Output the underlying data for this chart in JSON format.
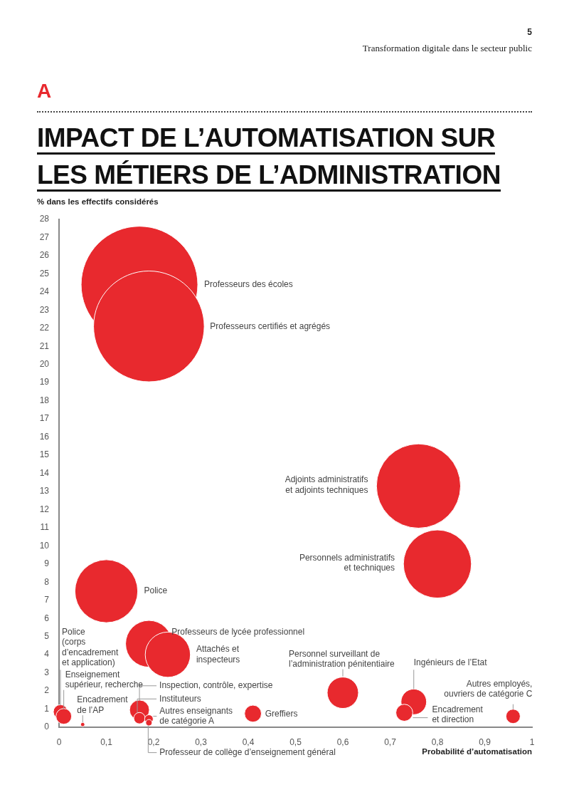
{
  "chart_data": {
    "type": "bubble",
    "title": "IMPACT DE L’AUTOMATISATION SUR LES MÉTIERS DE L’ADMINISTRATION",
    "subtitle": "Transformation digitale dans le secteur public",
    "ylabel": "% dans les effectifs considérés",
    "xlabel": "Probabilité d’automatisation",
    "annotations": [
      "5",
      "A"
    ],
    "xlim": [
      0,
      1
    ],
    "xticks": [
      0,
      {
        "value": 0.1,
        "label": "0,1"
      },
      {
        "value": 0.2,
        "label": "0,2"
      },
      {
        "value": 0.3,
        "label": "0,3"
      },
      {
        "value": 0.4,
        "label": "0,4"
      },
      {
        "value": 0.5,
        "label": "0,5"
      },
      {
        "value": 0.6,
        "label": "0,6"
      },
      {
        "value": 0.7,
        "label": "0,7"
      },
      {
        "value": 0.8,
        "label": "0,8"
      },
      {
        "value": 0.9,
        "label": "0,9"
      },
      1
    ],
    "ylim": [
      0,
      28
    ],
    "yticks": [
      0,
      1,
      2,
      3,
      4,
      5,
      6,
      7,
      8,
      9,
      10,
      11,
      12,
      13,
      14,
      15,
      16,
      17,
      18,
      19,
      20,
      21,
      22,
      23,
      24,
      25,
      26,
      27,
      28
    ],
    "grid": false,
    "legend": false,
    "series": [
      {
        "name": "Professeurs des écoles",
        "color": "#e8292e",
        "x": [
          0.17
        ],
        "values": [
          24.4
        ],
        "sizes": [
          1
        ]
      },
      {
        "name": "Professeurs certifiés et agrégés",
        "color": "#e8292e",
        "x": [
          0.19
        ],
        "values": [
          22.1
        ],
        "sizes": [
          0.9
        ]
      },
      {
        "name": "Adjoints administratifs et adjoints techniques",
        "color": "#e8292e",
        "x": [
          0.76
        ],
        "values": [
          13.3
        ],
        "sizes": [
          0.52
        ]
      },
      {
        "name": "Personnels administratifs et techniques",
        "color": "#e8292e",
        "x": [
          0.8
        ],
        "values": [
          9
        ],
        "sizes": [
          0.34
        ]
      },
      {
        "name": "Police",
        "color": "#e8292e",
        "x": [
          0.1
        ],
        "values": [
          7.5
        ],
        "sizes": [
          0.29
        ]
      },
      {
        "name": "Professeurs de lycée professionnel",
        "color": "#e8292e",
        "x": [
          0.19
        ],
        "values": [
          4.6
        ],
        "sizes": [
          0.16
        ]
      },
      {
        "name": "Attachés et inspecteurs",
        "color": "#e8292e",
        "x": [
          0.23
        ],
        "values": [
          4
        ],
        "sizes": [
          0.15
        ]
      },
      {
        "name": "Personnel surveillant de l’administration pénitentiaire",
        "color": "#e8292e",
        "x": [
          0.6
        ],
        "values": [
          1.9
        ],
        "sizes": [
          0.072
        ]
      },
      {
        "name": "Ingénieurs de l’Etat",
        "color": "#e8292e",
        "x": [
          0.75
        ],
        "values": [
          1.4
        ],
        "sizes": [
          0.048
        ]
      },
      {
        "name": "Encadrement et direction",
        "color": "#e8292e",
        "x": [
          0.73
        ],
        "values": [
          0.8
        ],
        "sizes": [
          0.021
        ]
      },
      {
        "name": "Autres employés, ouvriers de catégorie C",
        "color": "#e8292e",
        "x": [
          0.96
        ],
        "values": [
          0.6
        ],
        "sizes": [
          0.015
        ]
      },
      {
        "name": "Greffiers",
        "color": "#e8292e",
        "x": [
          0.41
        ],
        "values": [
          0.75
        ],
        "sizes": [
          0.021
        ]
      },
      {
        "name": "Inspection, contrôle, expertise",
        "color": "#e8292e",
        "x": [
          0.17
        ],
        "values": [
          0.95
        ],
        "sizes": [
          0.029
        ]
      },
      {
        "name": "Instituteurs",
        "color": "#e8292e",
        "x": [
          0.17
        ],
        "values": [
          0.5
        ],
        "sizes": [
          0.0095
        ]
      },
      {
        "name": "Autres enseignants de catégorie A",
        "color": "#e8292e",
        "x": [
          0.19
        ],
        "values": [
          0.45
        ],
        "sizes": [
          0.0054
        ]
      },
      {
        "name": "Professeur de collège d’enseignement général",
        "color": "#e8292e",
        "x": [
          0.19
        ],
        "values": [
          0.25
        ],
        "sizes": [
          0.003
        ]
      },
      {
        "name": "Police (corps d’encadrement et application)",
        "color": "#e8292e",
        "x": [
          0.003
        ],
        "values": [
          0.85
        ],
        "sizes": [
          0.015
        ]
      },
      {
        "name": "Enseignement supérieur, recherche",
        "color": "#e8292e",
        "x": [
          0.01
        ],
        "values": [
          0.6
        ],
        "sizes": [
          0.018
        ]
      },
      {
        "name": "Encadrement de l’AP",
        "color": "#e8292e",
        "x": [
          0.05
        ],
        "values": [
          0.15
        ],
        "sizes": [
          0.0013
        ]
      }
    ]
  }
}
